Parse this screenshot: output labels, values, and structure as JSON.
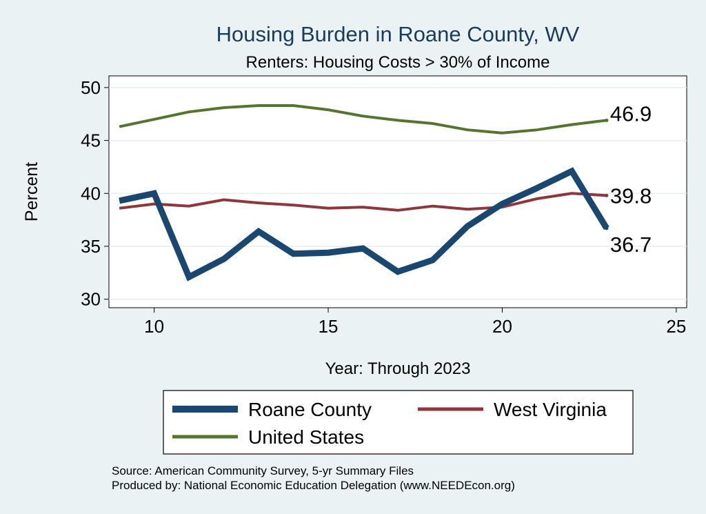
{
  "chart_data": {
    "type": "line",
    "title": "Housing Burden in Roane County, WV",
    "subtitle": "Renters: Housing Costs > 30% of Income",
    "xlabel": "Year: Through 2023",
    "ylabel": "Percent",
    "xlim": [
      8.7,
      25.3
    ],
    "ylim": [
      29.2,
      51.1
    ],
    "xticks": [
      10,
      15,
      20,
      25
    ],
    "yticks": [
      30,
      35,
      40,
      45,
      50
    ],
    "grid": true,
    "legend_position": "bottom",
    "x": [
      9,
      10,
      11,
      12,
      13,
      14,
      15,
      16,
      17,
      18,
      19,
      20,
      21,
      22,
      23
    ],
    "series": [
      {
        "name": "Roane County",
        "color": "#1a476f",
        "values": [
          39.3,
          40.0,
          32.1,
          33.8,
          36.4,
          34.3,
          34.4,
          34.8,
          32.6,
          33.7,
          36.9,
          39.0,
          40.5,
          42.1,
          36.7
        ],
        "end_label": "36.7"
      },
      {
        "name": "West Virginia",
        "color": "#90353b",
        "values": [
          38.6,
          39.0,
          38.8,
          39.4,
          39.1,
          38.9,
          38.6,
          38.7,
          38.4,
          38.8,
          38.5,
          38.7,
          39.5,
          40.0,
          39.8
        ],
        "end_label": "39.8"
      },
      {
        "name": "United States",
        "color": "#55752f",
        "values": [
          46.3,
          47.0,
          47.7,
          48.1,
          48.3,
          48.3,
          47.9,
          47.3,
          46.9,
          46.6,
          46.0,
          45.7,
          46.0,
          46.5,
          46.9
        ],
        "end_label": "46.9"
      }
    ],
    "legend_entries": [
      "Roane County",
      "West Virginia",
      "United States"
    ]
  },
  "footer": {
    "source": "Source: American Community Survey, 5-yr Summary Files",
    "produced_by": "Produced by: National Economic Education Delegation (www.NEEDEcon.org)"
  }
}
